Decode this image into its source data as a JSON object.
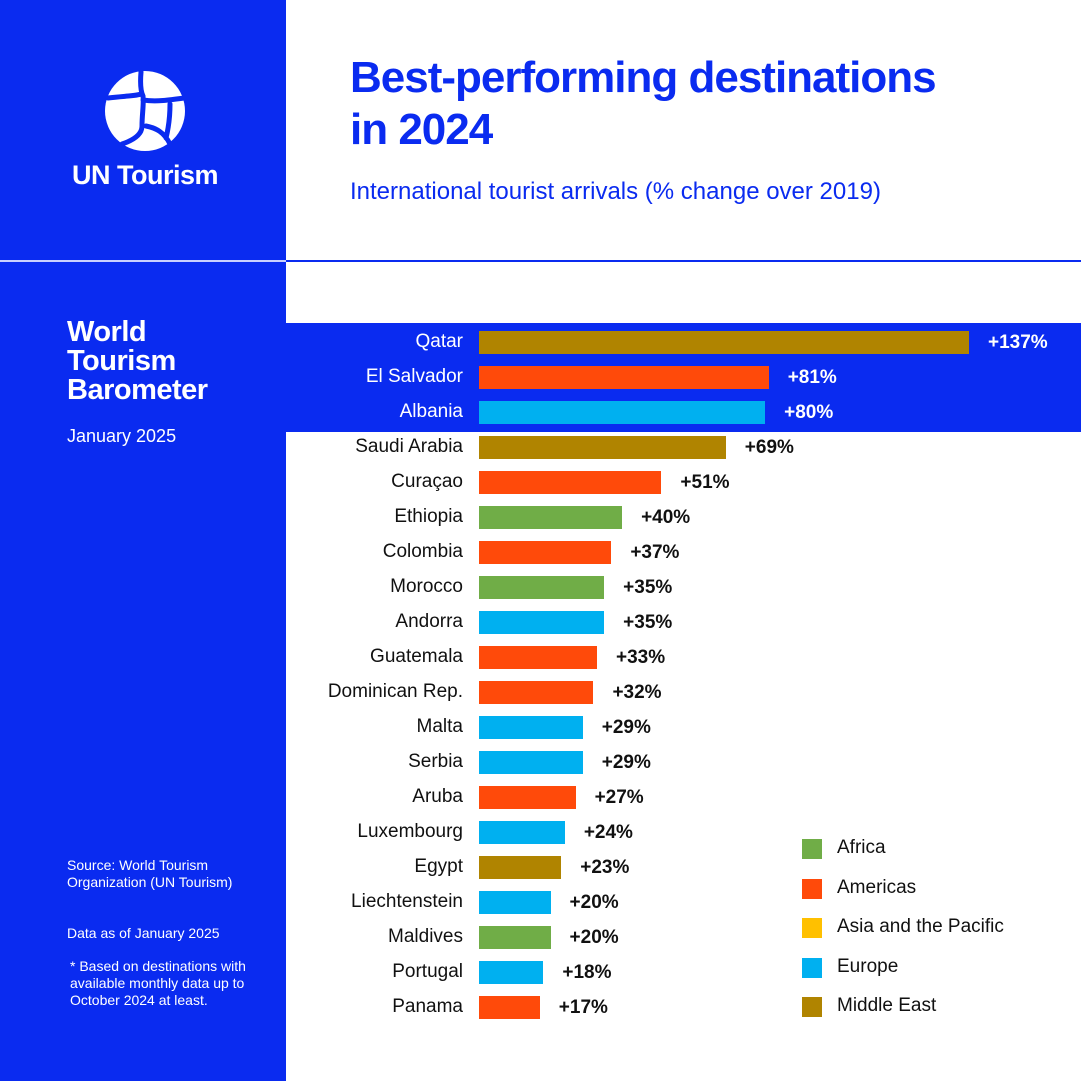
{
  "brand": {
    "name": "UN Tourism",
    "publication": [
      "World",
      "Tourism",
      "Barometer"
    ],
    "date": "January 2025"
  },
  "header": {
    "title_line1": "Best-performing destinations",
    "title_line2": "in 2024",
    "subtitle": "International tourist arrivals (% change over 2019)"
  },
  "footer": {
    "source": "Source: World Tourism Organization (UN Tourism)",
    "as_of": "Data as of January 2025",
    "note": "* Based on destinations with available monthly data up to October 2024 at least."
  },
  "colors": {
    "Africa": "#70ad47",
    "Americas": "#ff4a0a",
    "Asia and the Pacific": "#ffc000",
    "Europe": "#00b0f0",
    "Middle East": "#b08400",
    "brand": "#0a2bf0"
  },
  "chart_data": {
    "type": "bar",
    "orientation": "horizontal",
    "title": "Best-performing destinations in 2024",
    "subtitle": "International tourist arrivals (% change over 2019)",
    "xlim": [
      0,
      137
    ],
    "legend": {
      "placement": "bottom-right",
      "entries": [
        "Africa",
        "Americas",
        "Asia and the Pacific",
        "Europe",
        "Middle East"
      ]
    },
    "highlighted_top": 3,
    "bars": [
      {
        "label": "Qatar",
        "value": 137,
        "text": "+137%",
        "region": "Middle East"
      },
      {
        "label": "El Salvador",
        "value": 81,
        "text": "+81%",
        "region": "Americas"
      },
      {
        "label": "Albania",
        "value": 80,
        "text": "+80%",
        "region": "Europe"
      },
      {
        "label": "Saudi Arabia",
        "value": 69,
        "text": "+69%",
        "region": "Middle East"
      },
      {
        "label": "Curaçao",
        "value": 51,
        "text": "+51%",
        "region": "Americas"
      },
      {
        "label": "Ethiopia",
        "value": 40,
        "text": "+40%",
        "region": "Africa"
      },
      {
        "label": "Colombia",
        "value": 37,
        "text": "+37%",
        "region": "Americas"
      },
      {
        "label": "Morocco",
        "value": 35,
        "text": "+35%",
        "region": "Africa"
      },
      {
        "label": "Andorra",
        "value": 35,
        "text": "+35%",
        "region": "Europe"
      },
      {
        "label": "Guatemala",
        "value": 33,
        "text": "+33%",
        "region": "Americas"
      },
      {
        "label": "Dominican Rep.",
        "value": 32,
        "text": "+32%",
        "region": "Americas"
      },
      {
        "label": "Malta",
        "value": 29,
        "text": "+29%",
        "region": "Europe"
      },
      {
        "label": "Serbia",
        "value": 29,
        "text": "+29%",
        "region": "Europe"
      },
      {
        "label": "Aruba",
        "value": 27,
        "text": "+27%",
        "region": "Americas"
      },
      {
        "label": "Luxembourg",
        "value": 24,
        "text": "+24%",
        "region": "Europe"
      },
      {
        "label": "Egypt",
        "value": 23,
        "text": "+23%",
        "region": "Middle East"
      },
      {
        "label": "Liechtenstein",
        "value": 20,
        "text": "+20%",
        "region": "Europe"
      },
      {
        "label": "Maldives",
        "value": 20,
        "text": "+20%",
        "region": "Africa"
      },
      {
        "label": "Portugal",
        "value": 18,
        "text": "+18%",
        "region": "Europe"
      },
      {
        "label": "Panama",
        "value": 17,
        "text": "+17%",
        "region": "Americas"
      }
    ]
  }
}
